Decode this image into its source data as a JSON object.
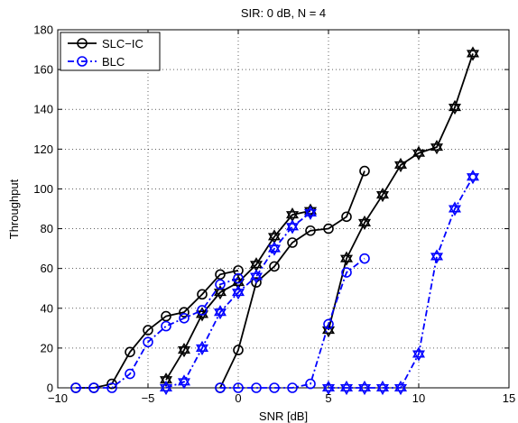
{
  "chart_data": {
    "type": "line",
    "title": "SIR: 0 dB, N = 4",
    "xlabel": "SNR [dB]",
    "ylabel": "Throughput",
    "xlim": [
      -10,
      15
    ],
    "ylim": [
      0,
      180
    ],
    "xticks": [
      -10,
      -5,
      0,
      5,
      10,
      15
    ],
    "yticks": [
      0,
      20,
      40,
      60,
      80,
      100,
      120,
      140,
      160,
      180
    ],
    "grid": true,
    "legend_position": "top-left",
    "legend": [
      {
        "label": "SLC−IC",
        "color": "#000000",
        "style": "solid",
        "marker": "circle"
      },
      {
        "label": "BLC",
        "color": "#0000ff",
        "style": "dashdot",
        "marker": "circle"
      }
    ],
    "series": [
      {
        "name": "SLC−IC",
        "color": "#000000",
        "style": "solid",
        "marker": "circle",
        "x": [
          -9,
          -8,
          -7,
          -6,
          -5,
          -4,
          -3,
          -2,
          -1,
          0
        ],
        "y": [
          0,
          0,
          2,
          18,
          29,
          36,
          38,
          47,
          57,
          59
        ]
      },
      {
        "name": "SLC−IC",
        "color": "#000000",
        "style": "solid",
        "marker": "star",
        "x": [
          -4,
          -3,
          -2,
          -1,
          0,
          1,
          2,
          3,
          4
        ],
        "y": [
          4,
          19,
          37,
          48,
          53,
          62,
          76,
          87,
          89
        ]
      },
      {
        "name": "SLC−IC",
        "color": "#000000",
        "style": "solid",
        "marker": "circle",
        "x": [
          -1,
          0,
          1,
          2,
          3,
          4,
          5,
          6,
          7
        ],
        "y": [
          0,
          19,
          53,
          61,
          73,
          79,
          80,
          86,
          109
        ]
      },
      {
        "name": "SLC−IC",
        "color": "#000000",
        "style": "solid",
        "marker": "star",
        "x": [
          5,
          6,
          7,
          8,
          9,
          10,
          11,
          12,
          13
        ],
        "y": [
          29,
          65,
          83,
          97,
          112,
          118,
          121,
          141,
          168
        ]
      },
      {
        "name": "BLC",
        "color": "#0000ff",
        "style": "dashdot",
        "marker": "circle",
        "x": [
          -9,
          -8,
          -7,
          -6,
          -5,
          -4,
          -3,
          -2,
          -1,
          0
        ],
        "y": [
          0,
          0,
          0,
          7,
          23,
          31,
          35,
          39,
          52,
          55
        ]
      },
      {
        "name": "BLC",
        "color": "#0000ff",
        "style": "dashdot",
        "marker": "star",
        "x": [
          -4,
          -3,
          -2,
          -1,
          0,
          1,
          2,
          3,
          4
        ],
        "y": [
          0,
          3,
          20,
          38,
          48,
          56,
          70,
          81,
          88
        ]
      },
      {
        "name": "BLC",
        "color": "#0000ff",
        "style": "dashdot",
        "marker": "circle",
        "x": [
          -1,
          0,
          1,
          2,
          3,
          4,
          5,
          6,
          7
        ],
        "y": [
          0,
          0,
          0,
          0,
          0,
          2,
          32,
          58,
          65
        ]
      },
      {
        "name": "BLC",
        "color": "#0000ff",
        "style": "dashdot",
        "marker": "star",
        "x": [
          5,
          6,
          7,
          8,
          9,
          10,
          11,
          12,
          13
        ],
        "y": [
          0,
          0,
          0,
          0,
          0,
          17,
          66,
          90,
          106
        ]
      }
    ]
  }
}
